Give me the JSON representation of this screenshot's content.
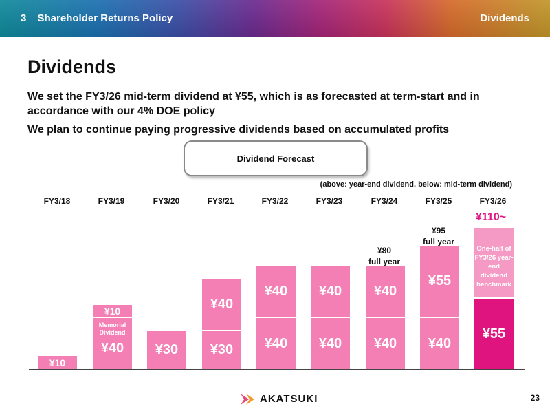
{
  "header": {
    "section_number": "3",
    "section_title": "Shareholder Returns Policy",
    "right_title": "Dividends"
  },
  "title": "Dividends",
  "lines": [
    "We set the FY3/26 mid-term dividend at ¥55, which is as forecasted at term-start and in accordance with our 4% DOE policy",
    "We plan to continue paying progressive dividends based on accumulated profits"
  ],
  "forecast_box": "Dividend Forecast",
  "note": "(above: year-end dividend, below: mid-term dividend)",
  "colors": {
    "bar": "#f37fb5",
    "highlight": "#e0147f"
  },
  "chart_data": {
    "type": "bar",
    "stacked": true,
    "categories": [
      "FY3/18",
      "FY3/19",
      "FY3/20",
      "FY3/21",
      "FY3/22",
      "FY3/23",
      "FY3/24",
      "FY3/25",
      "FY3/26"
    ],
    "series": [
      {
        "name": "mid-term dividend",
        "values": [
          10,
          40,
          30,
          30,
          40,
          40,
          40,
          40,
          55
        ]
      },
      {
        "name": "year-end dividend",
        "values": [
          null,
          10,
          null,
          40,
          40,
          40,
          40,
          55,
          null
        ]
      }
    ],
    "bottom_labels": [
      "¥10",
      "¥40",
      "¥30",
      "¥30",
      "¥40",
      "¥40",
      "¥40",
      "¥40",
      "¥55"
    ],
    "top_labels": [
      null,
      "¥10",
      null,
      "¥40",
      "¥40",
      "¥40",
      "¥40",
      "¥55",
      null
    ],
    "memorial_label": "Memorial Dividend",
    "benchmark_label": "One-half of FY3/26 year-end dividend benchmark",
    "fy24_total": "¥80",
    "fy24_total_note": "full year",
    "fy25_total": "¥95",
    "fy25_total_note": "full year",
    "fy26_total": "¥110~"
  },
  "footer": {
    "logo_text": "AKATSUKI",
    "page_number": "23"
  }
}
